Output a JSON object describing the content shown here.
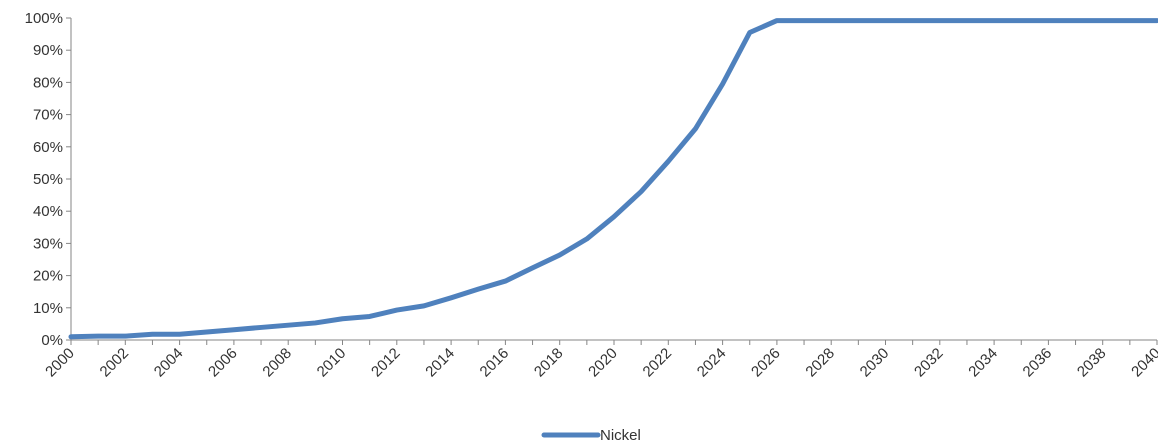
{
  "chart_data": {
    "type": "line",
    "title": "",
    "xlabel": "",
    "ylabel": "",
    "ylim": [
      0,
      100
    ],
    "y_ticks": [
      "0%",
      "10%",
      "20%",
      "30%",
      "40%",
      "50%",
      "60%",
      "70%",
      "80%",
      "90%",
      "100%"
    ],
    "x_ticks": [
      "2000",
      "2002",
      "2004",
      "2006",
      "2008",
      "2010",
      "2012",
      "2014",
      "2016",
      "2018",
      "2020",
      "2022",
      "2024",
      "2026",
      "2028",
      "2030",
      "2032",
      "2034",
      "2036",
      "2038",
      "2040"
    ],
    "grid": false,
    "legend_position": "bottom",
    "series": [
      {
        "name": "Nickel",
        "color": "#4f81bd",
        "x": [
          2000,
          2001,
          2002,
          2003,
          2004,
          2005,
          2006,
          2007,
          2008,
          2009,
          2010,
          2011,
          2012,
          2013,
          2014,
          2015,
          2016,
          2017,
          2018,
          2019,
          2020,
          2021,
          2022,
          2023,
          2024,
          2025,
          2026,
          2027,
          2028,
          2029,
          2030,
          2031,
          2032,
          2033,
          2034,
          2035,
          2036,
          2037,
          2038,
          2039,
          2040
        ],
        "values": [
          1,
          1.2,
          1.2,
          1.8,
          1.8,
          2.5,
          3.2,
          3.9,
          4.6,
          5.3,
          6.6,
          7.3,
          9.3,
          10.6,
          13.1,
          15.8,
          18.3,
          22.4,
          26.4,
          31.4,
          38.3,
          46.1,
          55.5,
          65.6,
          79.5,
          95.5,
          99.2,
          99.2,
          99.2,
          99.2,
          99.2,
          99.2,
          99.2,
          99.2,
          99.2,
          99.2,
          99.2,
          99.2,
          99.2,
          99.2,
          99.2
        ]
      }
    ]
  }
}
